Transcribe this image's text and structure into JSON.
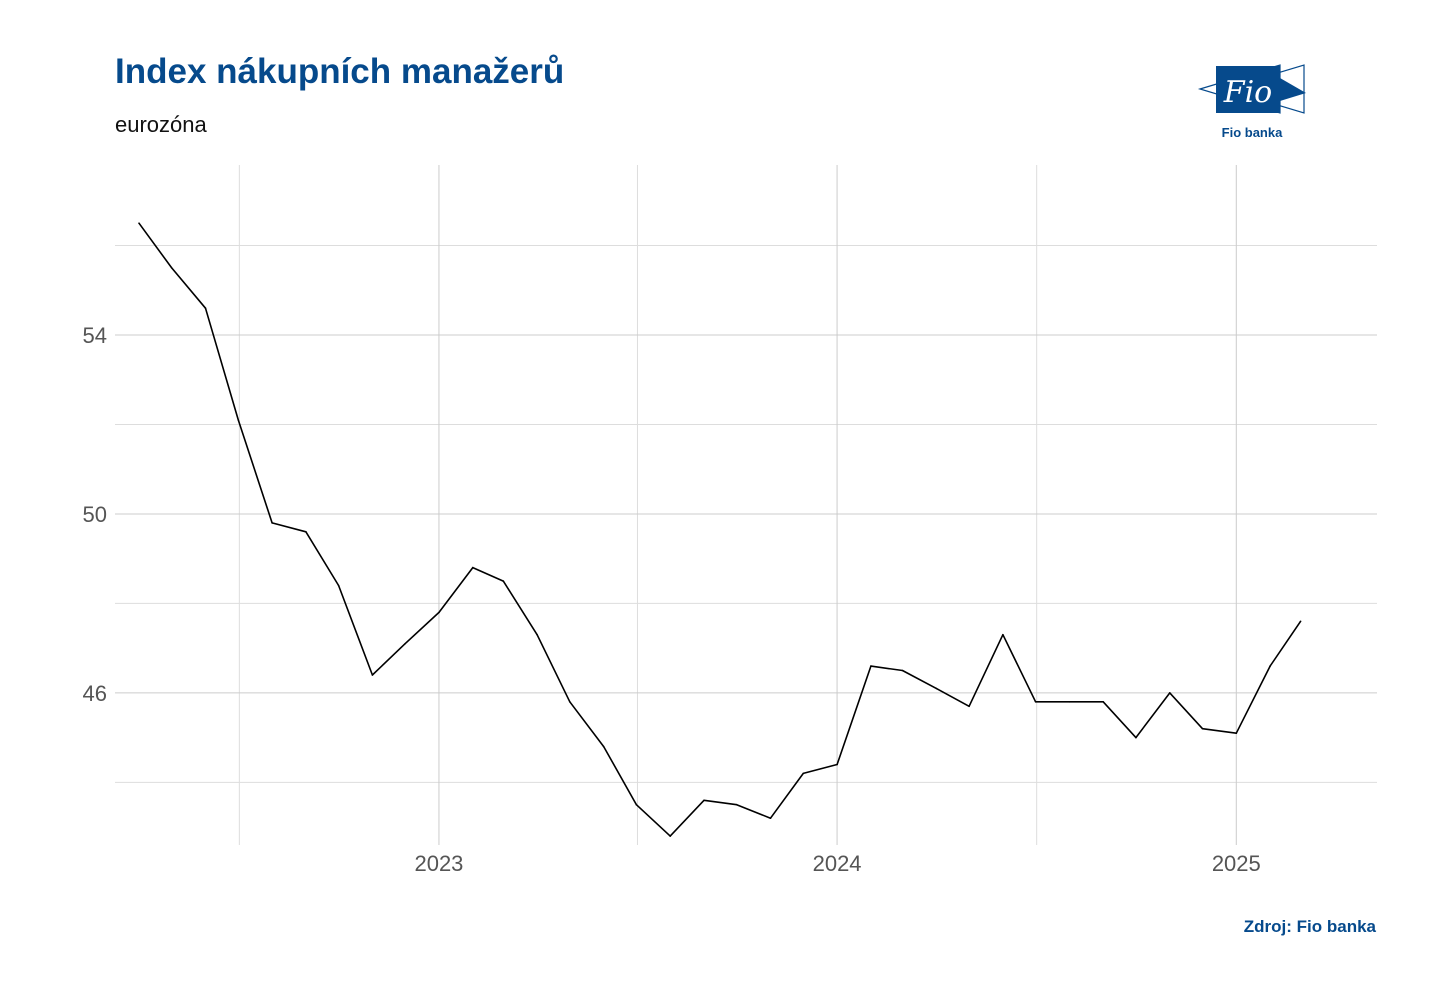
{
  "header": {
    "title": "Index nákupních manažerů",
    "subtitle": "eurozóna"
  },
  "logo": {
    "mark_text": "Fio",
    "caption": "Fio banka",
    "color": "#064a8c"
  },
  "footer": {
    "source": "Zdroj: Fio banka"
  },
  "chart_data": {
    "type": "line",
    "title": "Index nákupních manažerů",
    "subtitle": "eurozóna",
    "xlabel": "",
    "ylabel": "",
    "grid": true,
    "legend": "none",
    "line_color": "#000000",
    "x_ticks": [
      "2023",
      "2024",
      "2025"
    ],
    "y_ticks": [
      46,
      50,
      54
    ],
    "ylim": [
      42.6,
      57.8
    ],
    "xlim": [
      "2022-03-10",
      "2025-05-10"
    ],
    "series": [
      {
        "x": [
          "2022-04-01",
          "2022-05-01",
          "2022-06-01",
          "2022-07-01",
          "2022-08-01",
          "2022-09-01",
          "2022-10-01",
          "2022-11-01",
          "2022-12-01",
          "2023-01-01",
          "2023-02-01",
          "2023-03-01",
          "2023-04-01",
          "2023-05-01",
          "2023-06-01",
          "2023-07-01",
          "2023-08-01",
          "2023-09-01",
          "2023-10-01",
          "2023-11-01",
          "2023-12-01",
          "2024-01-01",
          "2024-02-01",
          "2024-03-01",
          "2024-04-01",
          "2024-05-01",
          "2024-06-01",
          "2024-07-01",
          "2024-08-01",
          "2024-09-01",
          "2024-10-01",
          "2024-11-01",
          "2024-12-01",
          "2025-01-01",
          "2025-02-01",
          "2025-03-01"
        ],
        "values": [
          56.5,
          55.5,
          54.6,
          52.1,
          49.8,
          49.6,
          48.4,
          46.4,
          47.1,
          47.8,
          48.8,
          48.5,
          47.3,
          45.8,
          44.8,
          43.5,
          42.8,
          43.6,
          43.5,
          43.2,
          44.2,
          44.4,
          46.6,
          46.5,
          46.1,
          45.7,
          47.3,
          45.8,
          45.8,
          45.8,
          45.0,
          46.0,
          45.2,
          45.1,
          46.6,
          47.6
        ]
      }
    ]
  }
}
